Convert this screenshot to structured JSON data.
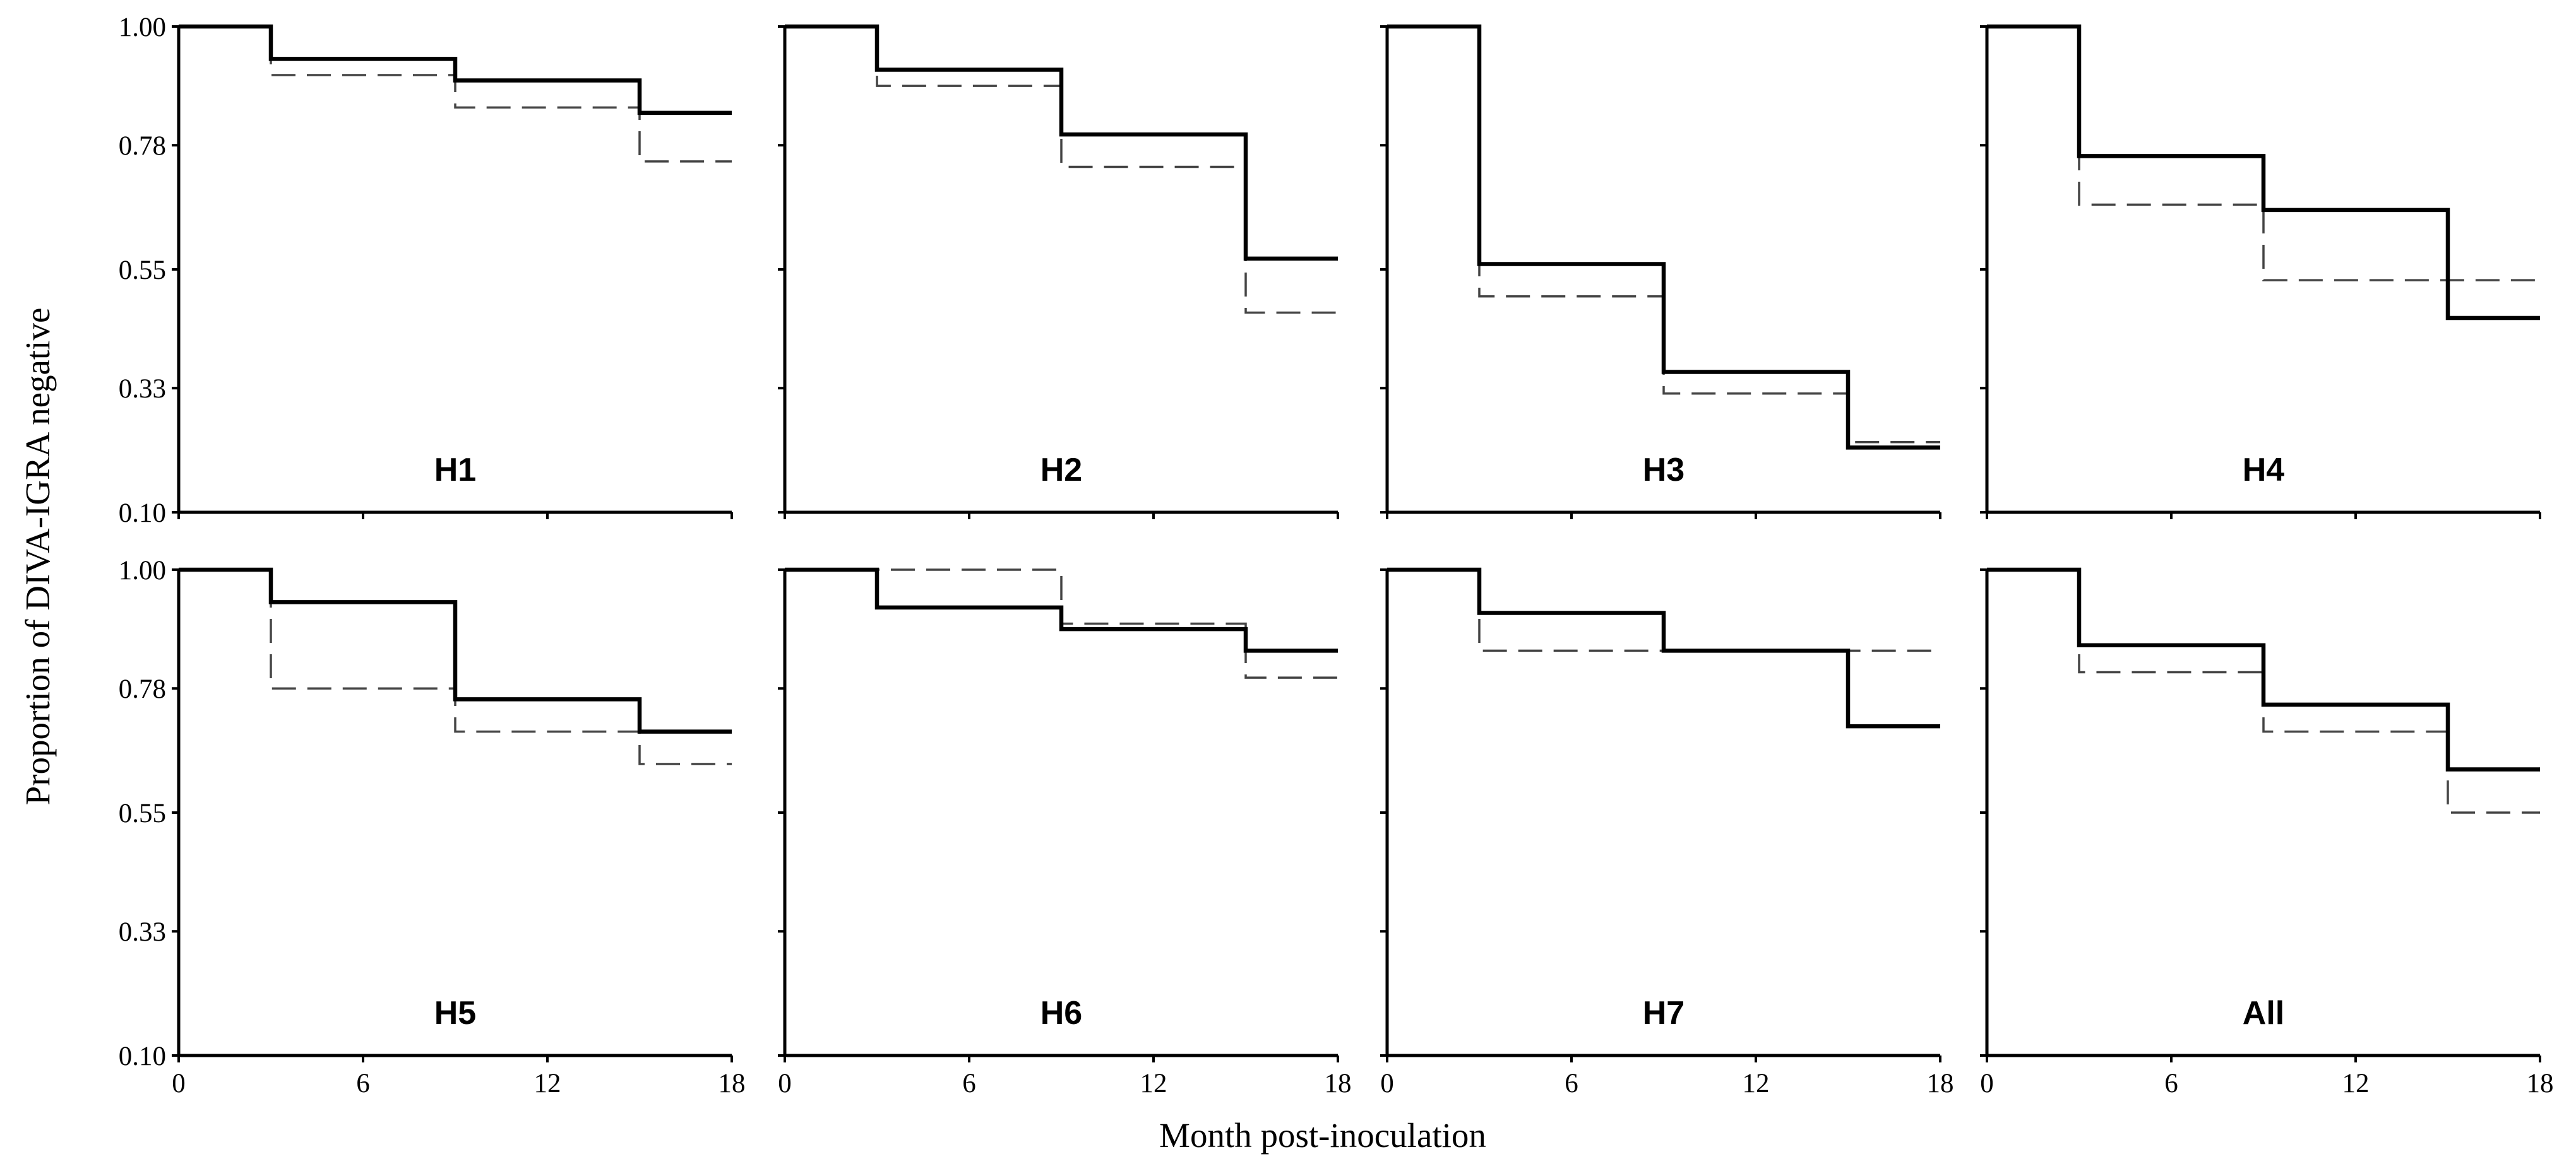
{
  "chart_data": {
    "type": "line",
    "step": true,
    "xlabel": "Month post-inoculation",
    "ylabel": "Proportion of DIVA-IGRA negative",
    "xlim": [
      0,
      18
    ],
    "ylim": [
      0.1,
      1.0
    ],
    "xticks": [
      "0",
      "6",
      "12",
      "18"
    ],
    "yticks": [
      "0.10",
      "0.33",
      "0.55",
      "0.78",
      "1.00"
    ],
    "x": [
      0,
      3,
      9,
      15,
      18
    ],
    "series_styles": [
      "solid",
      "dashed"
    ],
    "panels": [
      {
        "label": "H1",
        "series": [
          {
            "style": "solid",
            "values": [
              1.0,
              0.94,
              0.9,
              0.84,
              0.84
            ]
          },
          {
            "style": "dashed",
            "values": [
              1.0,
              0.91,
              0.85,
              0.75,
              0.75
            ]
          }
        ]
      },
      {
        "label": "H2",
        "series": [
          {
            "style": "solid",
            "values": [
              1.0,
              0.92,
              0.8,
              0.57,
              0.57
            ]
          },
          {
            "style": "dashed",
            "values": [
              1.0,
              0.89,
              0.74,
              0.47,
              0.47
            ]
          }
        ]
      },
      {
        "label": "H3",
        "series": [
          {
            "style": "solid",
            "values": [
              1.0,
              0.56,
              0.36,
              0.22,
              0.22
            ]
          },
          {
            "style": "dashed",
            "values": [
              1.0,
              0.5,
              0.32,
              0.23,
              0.23
            ]
          }
        ]
      },
      {
        "label": "H4",
        "series": [
          {
            "style": "solid",
            "values": [
              1.0,
              0.76,
              0.66,
              0.46,
              0.46
            ]
          },
          {
            "style": "dashed",
            "values": [
              1.0,
              0.67,
              0.53,
              0.53,
              0.53
            ]
          }
        ]
      },
      {
        "label": "H5",
        "series": [
          {
            "style": "solid",
            "values": [
              1.0,
              0.94,
              0.76,
              0.7,
              0.7
            ]
          },
          {
            "style": "dashed",
            "values": [
              1.0,
              0.78,
              0.7,
              0.64,
              0.64
            ]
          }
        ]
      },
      {
        "label": "H6",
        "series": [
          {
            "style": "solid",
            "values": [
              1.0,
              0.93,
              0.89,
              0.85,
              0.85
            ]
          },
          {
            "style": "dashed",
            "values": [
              1.0,
              1.0,
              0.9,
              0.8,
              0.8
            ]
          }
        ]
      },
      {
        "label": "H7",
        "series": [
          {
            "style": "solid",
            "values": [
              1.0,
              0.92,
              0.85,
              0.71,
              0.71
            ]
          },
          {
            "style": "dashed",
            "values": [
              1.0,
              0.85,
              0.85,
              0.85,
              0.85
            ]
          }
        ]
      },
      {
        "label": "All",
        "series": [
          {
            "style": "solid",
            "values": [
              1.0,
              0.86,
              0.75,
              0.63,
              0.63
            ]
          },
          {
            "style": "dashed",
            "values": [
              1.0,
              0.81,
              0.7,
              0.55,
              0.55
            ]
          }
        ]
      }
    ]
  }
}
